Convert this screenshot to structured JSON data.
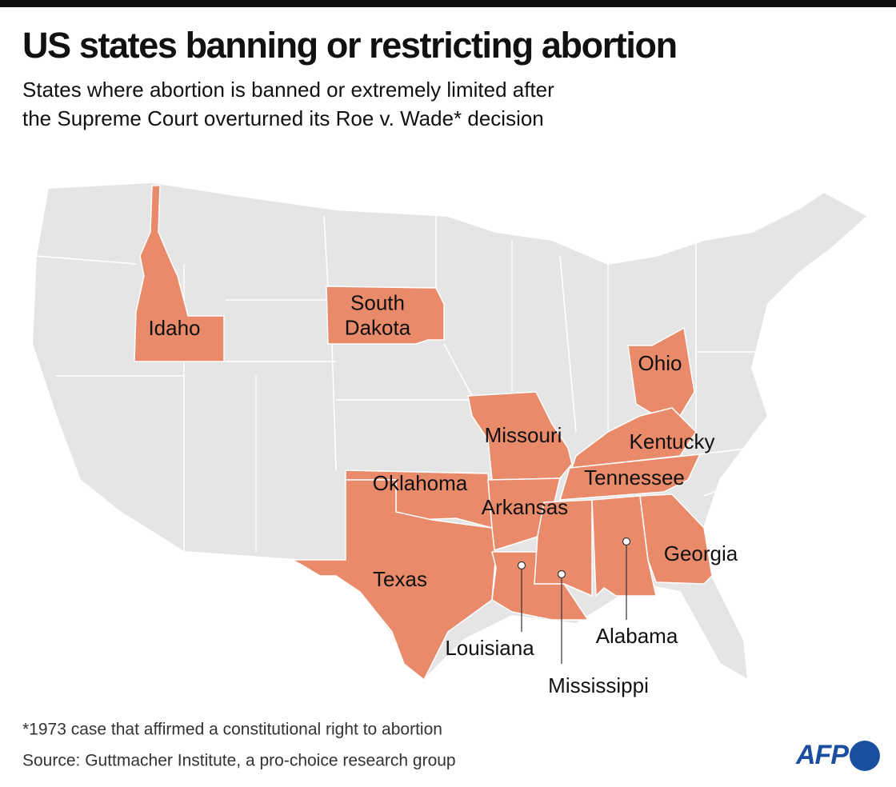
{
  "header": {
    "title": "US states banning or restricting abortion",
    "subtitle": [
      "States where abortion is banned or extremely limited after",
      "the Supreme Court overturned its Roe v. Wade* decision"
    ]
  },
  "map": {
    "states": [
      {
        "label": [
          "Idaho"
        ]
      },
      {
        "label": [
          "South",
          "Dakota"
        ]
      },
      {
        "label": [
          "Ohio"
        ]
      },
      {
        "label": [
          "Missouri"
        ]
      },
      {
        "label": [
          "Kentucky"
        ]
      },
      {
        "label": [
          "Tennessee"
        ]
      },
      {
        "label": [
          "Oklahoma"
        ]
      },
      {
        "label": [
          "Arkansas"
        ]
      },
      {
        "label": [
          "Texas"
        ]
      },
      {
        "label": [
          "Louisiana"
        ]
      },
      {
        "label": [
          "Mississippi"
        ]
      },
      {
        "label": [
          "Alabama"
        ]
      },
      {
        "label": [
          "Georgia"
        ]
      }
    ]
  },
  "footer": {
    "note": "*1973 case that affirmed a constitutional right to abortion",
    "source": "Source: Guttmacher Institute, a pro-choice research group",
    "logo": "AFP"
  }
}
